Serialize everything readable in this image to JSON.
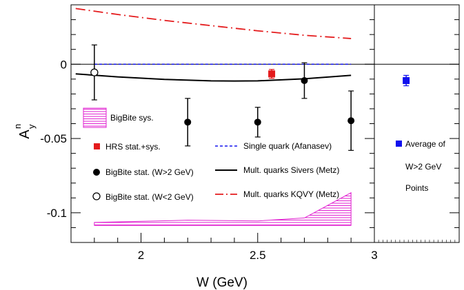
{
  "chart_data": {
    "type": "scatter",
    "xlabel": "W (GeV)",
    "ylabel": "A",
    "ylabel_sup": "n",
    "ylabel_sub": "y",
    "main_panel": {
      "xlim": [
        1.7,
        3.0
      ],
      "ylim": [
        -0.12,
        0.04
      ],
      "xticks": [
        2,
        2.5,
        3
      ],
      "xtick_labels": [
        "2",
        "2.5",
        "3"
      ],
      "yticks": [
        0,
        -0.05,
        -0.1
      ],
      "ytick_labels": [
        "0",
        "-0.05",
        "-0.1"
      ],
      "zero_line": true
    },
    "side_panel": {
      "xlim": [
        3.0,
        3.4
      ],
      "ylim": [
        -0.12,
        0.04
      ],
      "zero_line": true
    },
    "series": [
      {
        "name": "BigBite stat. (W>2 GeV)",
        "marker": "filled-circle",
        "color": "#000000",
        "points": [
          {
            "x": 2.2,
            "y": -0.039,
            "err": 0.016
          },
          {
            "x": 2.5,
            "y": -0.039,
            "err": 0.01
          },
          {
            "x": 2.7,
            "y": -0.011,
            "err": 0.012
          },
          {
            "x": 2.9,
            "y": -0.038,
            "err": 0.02
          }
        ]
      },
      {
        "name": "BigBite stat. (W<2 GeV)",
        "marker": "open-circle",
        "color": "#000000",
        "points": [
          {
            "x": 1.8,
            "y": -0.0055,
            "err": 0.0185
          }
        ]
      },
      {
        "name": "HRS stat.+sys.",
        "marker": "filled-square",
        "color": "#e41a1c",
        "points": [
          {
            "x": 2.56,
            "y": -0.0065,
            "err": 0.003
          }
        ]
      },
      {
        "name": "Average of W>2 GeV Points",
        "marker": "filled-square",
        "color": "#1010ee",
        "panel": "side",
        "points": [
          {
            "x": 3.15,
            "y": -0.011,
            "err": 0.0035
          }
        ]
      }
    ],
    "curves": [
      {
        "name": "Single quark (Afanasev)",
        "style": "dashed",
        "color": "#1010ee",
        "x": [
          1.8,
          2.9
        ],
        "y": [
          0.0,
          0.0
        ]
      },
      {
        "name": "Mult. quarks Sivers (Metz)",
        "style": "solid",
        "color": "#000000",
        "x": [
          1.72,
          1.9,
          2.1,
          2.3,
          2.4,
          2.5,
          2.7,
          2.9
        ],
        "y": [
          -0.0065,
          -0.0085,
          -0.0102,
          -0.0112,
          -0.0113,
          -0.0112,
          -0.0098,
          -0.0075
        ]
      },
      {
        "name": "Mult. quarks KQVY (Metz)",
        "style": "dash-dot",
        "color": "#e41a1c",
        "x": [
          1.72,
          1.9,
          2.1,
          2.3,
          2.5,
          2.7,
          2.9
        ],
        "y": [
          0.0375,
          0.0335,
          0.0295,
          0.026,
          0.0225,
          0.0195,
          0.0173
        ]
      }
    ],
    "band": {
      "name": "BigBite sys.",
      "color": "#e020d0",
      "x": [
        1.8,
        2.2,
        2.5,
        2.7,
        2.9
      ],
      "lower": [
        -0.1085,
        -0.1085,
        -0.1085,
        -0.1085,
        -0.1085
      ],
      "upper": [
        -0.1065,
        -0.105,
        -0.1055,
        -0.1035,
        -0.0865
      ]
    },
    "legend": {
      "placement": "inside",
      "entries": [
        {
          "label": "BigBite sys.",
          "symbol": "band"
        },
        {
          "label": "HRS stat.+sys.",
          "symbol": "red-square"
        },
        {
          "label": "BigBite stat. (W>2 GeV)",
          "symbol": "filled-circle"
        },
        {
          "label": "BigBite stat. (W<2 GeV)",
          "symbol": "open-circle"
        },
        {
          "label": "Single quark (Afanasev)",
          "symbol": "blue-dashed"
        },
        {
          "label": "Mult. quarks Sivers (Metz)",
          "symbol": "black-solid"
        },
        {
          "label": "Mult. quarks KQVY (Metz)",
          "symbol": "red-dashdot"
        }
      ],
      "side_entry_lines": [
        "Average of",
        "W>2 GeV",
        "Points"
      ]
    }
  }
}
